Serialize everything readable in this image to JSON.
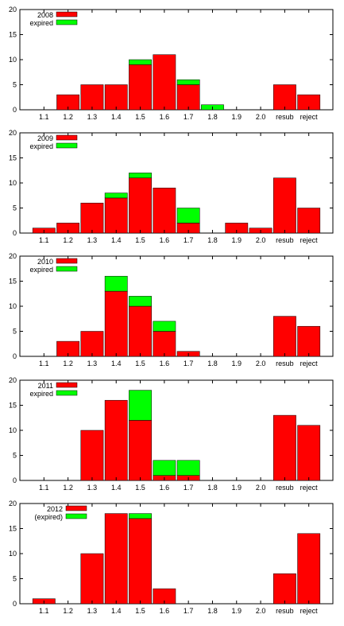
{
  "colors": {
    "main": "#ff0000",
    "expired": "#00ff00",
    "axis": "#000000"
  },
  "chart_data": [
    {
      "type": "bar",
      "stacked": true,
      "categories": [
        "1.1",
        "1.2",
        "1.3",
        "1.4",
        "1.5",
        "1.6",
        "1.7",
        "1.8",
        "1.9",
        "2.0",
        "resub",
        "reject"
      ],
      "ylim": [
        0,
        20
      ],
      "yticks": [
        0,
        5,
        10,
        15,
        20
      ],
      "legend": "top-left",
      "series": [
        {
          "name": "2008",
          "values": [
            0,
            3,
            5,
            5,
            9,
            11,
            5,
            0,
            0,
            0,
            5,
            3
          ]
        },
        {
          "name": "expired",
          "values": [
            0,
            0,
            0,
            0,
            1,
            0,
            1,
            1,
            0,
            0,
            0,
            0
          ]
        }
      ]
    },
    {
      "type": "bar",
      "stacked": true,
      "categories": [
        "1.1",
        "1.2",
        "1.3",
        "1.4",
        "1.5",
        "1.6",
        "1.7",
        "1.8",
        "1.9",
        "2.0",
        "resub",
        "reject"
      ],
      "ylim": [
        0,
        20
      ],
      "yticks": [
        0,
        5,
        10,
        15,
        20
      ],
      "legend": "top-left",
      "series": [
        {
          "name": "2009",
          "values": [
            1,
            2,
            6,
            7,
            11,
            9,
            2,
            0,
            2,
            1,
            11,
            5
          ]
        },
        {
          "name": "expired",
          "values": [
            0,
            0,
            0,
            1,
            1,
            0,
            3,
            0,
            0,
            0,
            0,
            0
          ]
        }
      ]
    },
    {
      "type": "bar",
      "stacked": true,
      "categories": [
        "1.1",
        "1.2",
        "1.3",
        "1.4",
        "1.5",
        "1.6",
        "1.7",
        "1.8",
        "1.9",
        "2.0",
        "resub",
        "reject"
      ],
      "ylim": [
        0,
        20
      ],
      "yticks": [
        0,
        5,
        10,
        15,
        20
      ],
      "legend": "top-left",
      "series": [
        {
          "name": "2010",
          "values": [
            0,
            3,
            5,
            13,
            10,
            5,
            1,
            0,
            0,
            0,
            8,
            6
          ]
        },
        {
          "name": "expired",
          "values": [
            0,
            0,
            0,
            3,
            2,
            2,
            0,
            0,
            0,
            0,
            0,
            0
          ]
        }
      ]
    },
    {
      "type": "bar",
      "stacked": true,
      "categories": [
        "1.1",
        "1.2",
        "1.3",
        "1.4",
        "1.5",
        "1.6",
        "1.7",
        "1.8",
        "1.9",
        "2.0",
        "resub",
        "reject"
      ],
      "ylim": [
        0,
        20
      ],
      "yticks": [
        0,
        5,
        10,
        15,
        20
      ],
      "legend": "top-left",
      "series": [
        {
          "name": "2011",
          "values": [
            0,
            0,
            10,
            16,
            12,
            1,
            1,
            0,
            0,
            0,
            13,
            11
          ]
        },
        {
          "name": "expired",
          "values": [
            0,
            0,
            0,
            0,
            6,
            3,
            3,
            0,
            0,
            0,
            0,
            0
          ]
        }
      ]
    },
    {
      "type": "bar",
      "stacked": true,
      "categories": [
        "1.1",
        "1.2",
        "1.3",
        "1.4",
        "1.5",
        "1.6",
        "1.7",
        "1.8",
        "1.9",
        "2.0",
        "resub",
        "reject"
      ],
      "ylim": [
        0,
        20
      ],
      "yticks": [
        0,
        5,
        10,
        15,
        20
      ],
      "legend": "top-left",
      "series": [
        {
          "name": "2012",
          "values": [
            1,
            0,
            10,
            18,
            17,
            3,
            0,
            0,
            0,
            0,
            6,
            14
          ]
        },
        {
          "name": "(expired)",
          "values": [
            0,
            0,
            0,
            0,
            1,
            0,
            0,
            0,
            0,
            0,
            0,
            0
          ]
        }
      ]
    }
  ]
}
